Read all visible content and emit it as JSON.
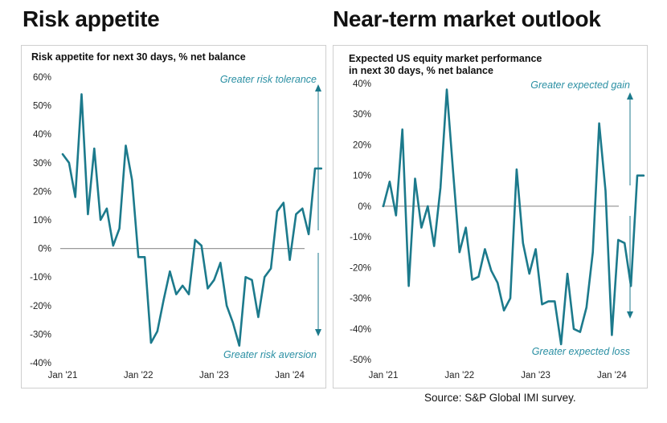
{
  "sections": [
    {
      "title": "Risk appetite"
    },
    {
      "title": "Near-term market outlook"
    }
  ],
  "source": "Source: S&P Global IMI survey.",
  "colors": {
    "line": "#1c7a8c",
    "arrow": "#1c7a8c",
    "annotation": "#2a8fa3",
    "zero": "#9a9a9a",
    "border": "#cfcfcf"
  },
  "chart_data": [
    {
      "type": "line",
      "title": "Risk appetite for next 30 days, % net balance",
      "xlabel": "",
      "ylabel": "",
      "ylim": [
        -40,
        60
      ],
      "y_ticks": [
        60,
        50,
        40,
        30,
        20,
        10,
        0,
        -10,
        -20,
        -30,
        -40
      ],
      "y_tick_labels": [
        "60%",
        "50%",
        "40%",
        "30%",
        "20%",
        "10%",
        "0%",
        "-10%",
        "-20%",
        "-30%",
        "-40%"
      ],
      "x_tick_labels": [
        "Jan '21",
        "Jan '22",
        "Jan '23",
        "Jan '24"
      ],
      "x_tick_dates": [
        "2021-01",
        "2022-01",
        "2023-01",
        "2024-01"
      ],
      "xlim": [
        "2021-01",
        "2024-07"
      ],
      "grid": false,
      "annotations": {
        "top": "Greater risk tolerance",
        "bottom": "Greater risk aversion"
      },
      "series": [
        {
          "x": [
            "2021-01",
            "2021-02",
            "2021-03",
            "2021-04",
            "2021-05",
            "2021-06",
            "2021-07",
            "2021-08",
            "2021-09",
            "2021-10",
            "2021-11",
            "2021-12",
            "2022-01",
            "2022-02",
            "2022-03",
            "2022-04",
            "2022-05",
            "2022-06",
            "2022-07",
            "2022-08",
            "2022-09",
            "2022-10",
            "2022-11",
            "2022-12",
            "2023-01",
            "2023-02",
            "2023-03",
            "2023-04",
            "2023-05",
            "2023-06",
            "2023-07",
            "2023-08",
            "2023-09",
            "2023-10",
            "2023-11",
            "2023-12",
            "2024-01",
            "2024-02",
            "2024-03",
            "2024-04",
            "2024-05",
            "2024-06"
          ],
          "values": [
            33,
            30,
            18,
            54,
            12,
            35,
            10,
            14,
            1,
            7,
            36,
            24,
            -3,
            -3,
            -33,
            -29,
            -18,
            -8,
            -16,
            -13,
            -16,
            3,
            1,
            -14,
            -11,
            -5,
            -20,
            -26,
            -34,
            -10,
            -11,
            -24,
            -10,
            -7,
            13,
            16,
            -4,
            12,
            14,
            5,
            28,
            28
          ]
        }
      ]
    },
    {
      "type": "line",
      "title": "Expected US equity market performance in next 30 days, % net balance",
      "title_lines": [
        "Expected US equity market performance",
        "in next 30 days, % net balance"
      ],
      "xlabel": "",
      "ylabel": "",
      "ylim": [
        -50,
        40
      ],
      "y_ticks": [
        40,
        30,
        20,
        10,
        0,
        -10,
        -20,
        -30,
        -40,
        -50
      ],
      "y_tick_labels": [
        "40%",
        "30%",
        "20%",
        "10%",
        "0%",
        "-10%",
        "-20%",
        "-30%",
        "-40%",
        "-50%"
      ],
      "x_tick_labels": [
        "Jan '21",
        "Jan '22",
        "Jan '23",
        "Jan '24"
      ],
      "x_tick_dates": [
        "2021-01",
        "2022-01",
        "2023-01",
        "2024-01"
      ],
      "xlim": [
        "2021-01",
        "2024-07"
      ],
      "grid": false,
      "annotations": {
        "top": "Greater expected gain",
        "bottom": "Greater  expected loss"
      },
      "series": [
        {
          "x": [
            "2021-01",
            "2021-02",
            "2021-03",
            "2021-04",
            "2021-05",
            "2021-06",
            "2021-07",
            "2021-08",
            "2021-09",
            "2021-10",
            "2021-11",
            "2021-12",
            "2022-01",
            "2022-02",
            "2022-03",
            "2022-04",
            "2022-05",
            "2022-06",
            "2022-07",
            "2022-08",
            "2022-09",
            "2022-10",
            "2022-11",
            "2022-12",
            "2023-01",
            "2023-02",
            "2023-03",
            "2023-04",
            "2023-05",
            "2023-06",
            "2023-07",
            "2023-08",
            "2023-09",
            "2023-10",
            "2023-11",
            "2023-12",
            "2024-01",
            "2024-02",
            "2024-03",
            "2024-04",
            "2024-05",
            "2024-06"
          ],
          "values": [
            0,
            8,
            -3,
            25,
            -26,
            9,
            -7,
            0,
            -13,
            6,
            38,
            11,
            -15,
            -7,
            -24,
            -23,
            -14,
            -21,
            -25,
            -34,
            -30,
            12,
            -12,
            -22,
            -14,
            -32,
            -31,
            -31,
            -45,
            -22,
            -40,
            -41,
            -33,
            -15,
            27,
            5,
            -42,
            -11,
            -12,
            -26,
            10,
            10
          ]
        }
      ]
    }
  ]
}
